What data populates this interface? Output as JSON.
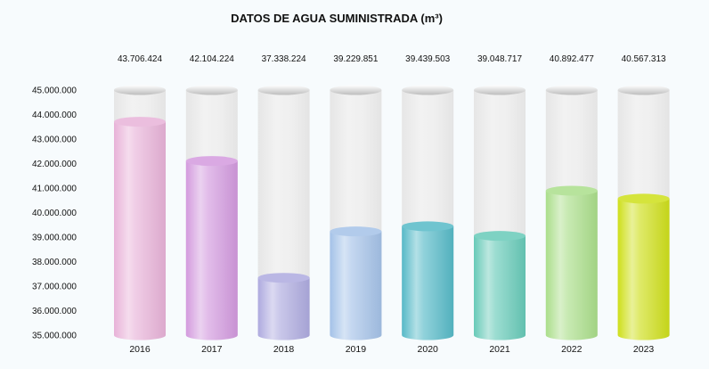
{
  "chart_data": {
    "type": "bar",
    "title": "DATOS DE AGUA SUMINISTRADA (m³)",
    "categories": [
      "2016",
      "2017",
      "2018",
      "2019",
      "2020",
      "2021",
      "2022",
      "2023"
    ],
    "values": [
      43706424,
      42104224,
      37338224,
      39229851,
      39439503,
      39048717,
      40892477,
      40567313
    ],
    "value_labels": [
      "43.706.424",
      "42.104.224",
      "37.338.224",
      "39.229.851",
      "39.439.503",
      "39.048.717",
      "40.892.477",
      "40.567.313"
    ],
    "ylim": [
      35000000,
      45000000
    ],
    "yticks": [
      35000000,
      36000000,
      37000000,
      38000000,
      39000000,
      40000000,
      41000000,
      42000000,
      43000000,
      44000000,
      45000000
    ],
    "ytick_labels": [
      "35.000.000",
      "36.000.000",
      "37.000.000",
      "38.000.000",
      "39.000.000",
      "40.000.000",
      "41.000.000",
      "42.000.000",
      "43.000.000",
      "44.000.000",
      "45.000.000"
    ],
    "grid": false,
    "colors": [
      "#e8b2d8",
      "#d39ade",
      "#aeaadf",
      "#a4c2e8",
      "#56b9c7",
      "#67cab8",
      "#aade8a",
      "#cedf1a"
    ]
  }
}
